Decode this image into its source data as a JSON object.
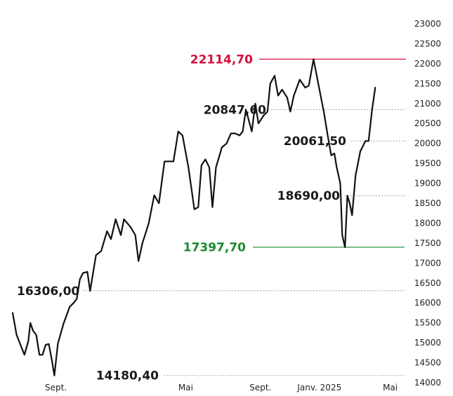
{
  "chart_data": {
    "type": "line",
    "title": "",
    "xlabel": "",
    "ylabel": "",
    "ylim": [
      14000,
      23000
    ],
    "y_ticks": [
      "23000",
      "22500",
      "22000",
      "21500",
      "21000",
      "20500",
      "20000",
      "19500",
      "19000",
      "18500",
      "18000",
      "17500",
      "17000",
      "16500",
      "16000",
      "15500",
      "15000",
      "14500",
      "14000"
    ],
    "x_ticks": [
      {
        "label": "Sept.",
        "x": 0.11
      },
      {
        "label": "Mai",
        "x": 0.44
      },
      {
        "label": "Sept.",
        "x": 0.63
      },
      {
        "label": "Janv. 2025",
        "x": 0.78
      },
      {
        "label": "Mai",
        "x": 0.96
      }
    ],
    "grid": false,
    "colors": {
      "line": "#111111",
      "high": "#d4103c",
      "low": "#1b8a2e",
      "guide": "#999999"
    },
    "series": [
      {
        "values": [
          [
            0.0,
            15750
          ],
          [
            0.01,
            15200
          ],
          [
            0.02,
            14950
          ],
          [
            0.03,
            14700
          ],
          [
            0.04,
            15050
          ],
          [
            0.045,
            15500
          ],
          [
            0.052,
            15300
          ],
          [
            0.06,
            15200
          ],
          [
            0.068,
            14700
          ],
          [
            0.076,
            14700
          ],
          [
            0.084,
            14950
          ],
          [
            0.092,
            14970
          ],
          [
            0.1,
            14550
          ],
          [
            0.106,
            14180
          ],
          [
            0.115,
            14980
          ],
          [
            0.13,
            15500
          ],
          [
            0.145,
            15900
          ],
          [
            0.155,
            16000
          ],
          [
            0.163,
            16100
          ],
          [
            0.171,
            16600
          ],
          [
            0.179,
            16750
          ],
          [
            0.19,
            16780
          ],
          [
            0.197,
            16300
          ],
          [
            0.212,
            17200
          ],
          [
            0.225,
            17300
          ],
          [
            0.24,
            17800
          ],
          [
            0.25,
            17600
          ],
          [
            0.262,
            18100
          ],
          [
            0.275,
            17700
          ],
          [
            0.283,
            18100
          ],
          [
            0.3,
            17900
          ],
          [
            0.312,
            17700
          ],
          [
            0.32,
            17050
          ],
          [
            0.33,
            17500
          ],
          [
            0.346,
            18000
          ],
          [
            0.36,
            18700
          ],
          [
            0.372,
            18500
          ],
          [
            0.386,
            19550
          ],
          [
            0.398,
            19550
          ],
          [
            0.409,
            19550
          ],
          [
            0.421,
            20300
          ],
          [
            0.432,
            20200
          ],
          [
            0.447,
            19400
          ],
          [
            0.462,
            18350
          ],
          [
            0.472,
            18400
          ],
          [
            0.48,
            19450
          ],
          [
            0.49,
            19600
          ],
          [
            0.5,
            19400
          ],
          [
            0.508,
            18400
          ],
          [
            0.517,
            19400
          ],
          [
            0.532,
            19900
          ],
          [
            0.544,
            20000
          ],
          [
            0.555,
            20250
          ],
          [
            0.566,
            20250
          ],
          [
            0.577,
            20200
          ],
          [
            0.585,
            20300
          ],
          [
            0.593,
            20847.6
          ],
          [
            0.608,
            20300
          ],
          [
            0.617,
            21000
          ],
          [
            0.625,
            20500
          ],
          [
            0.638,
            20700
          ],
          [
            0.648,
            20800
          ],
          [
            0.655,
            21500
          ],
          [
            0.666,
            21700
          ],
          [
            0.675,
            21200
          ],
          [
            0.685,
            21350
          ],
          [
            0.698,
            21150
          ],
          [
            0.706,
            20800
          ],
          [
            0.715,
            21200
          ],
          [
            0.73,
            21600
          ],
          [
            0.744,
            21400
          ],
          [
            0.753,
            21450
          ],
          [
            0.765,
            22114.7
          ],
          [
            0.781,
            21300
          ],
          [
            0.791,
            20800
          ],
          [
            0.801,
            20200
          ],
          [
            0.81,
            19700
          ],
          [
            0.818,
            19750
          ],
          [
            0.824,
            19400
          ],
          [
            0.833,
            19000
          ],
          [
            0.838,
            17700
          ],
          [
            0.845,
            17397.7
          ],
          [
            0.851,
            18690
          ],
          [
            0.857,
            18500
          ],
          [
            0.863,
            18200
          ],
          [
            0.872,
            19200
          ],
          [
            0.884,
            19800
          ],
          [
            0.897,
            20061.5
          ],
          [
            0.905,
            20061.5
          ],
          [
            0.914,
            20850
          ],
          [
            0.922,
            21400
          ]
        ]
      }
    ],
    "annotations": {
      "high": {
        "label": "22114,70",
        "value": 22114.7
      },
      "second": {
        "label": "20847,60",
        "value": 20847.6
      },
      "third": {
        "label": "20061,50",
        "value": 20061.5
      },
      "fourth": {
        "label": "18690,00",
        "value": 18690.0
      },
      "low_2025": {
        "label": "17397,70",
        "value": 17397.7
      },
      "prev": {
        "label": "16306,00",
        "value": 16306.0
      },
      "low": {
        "label": "14180,40",
        "value": 14180.4
      }
    }
  }
}
